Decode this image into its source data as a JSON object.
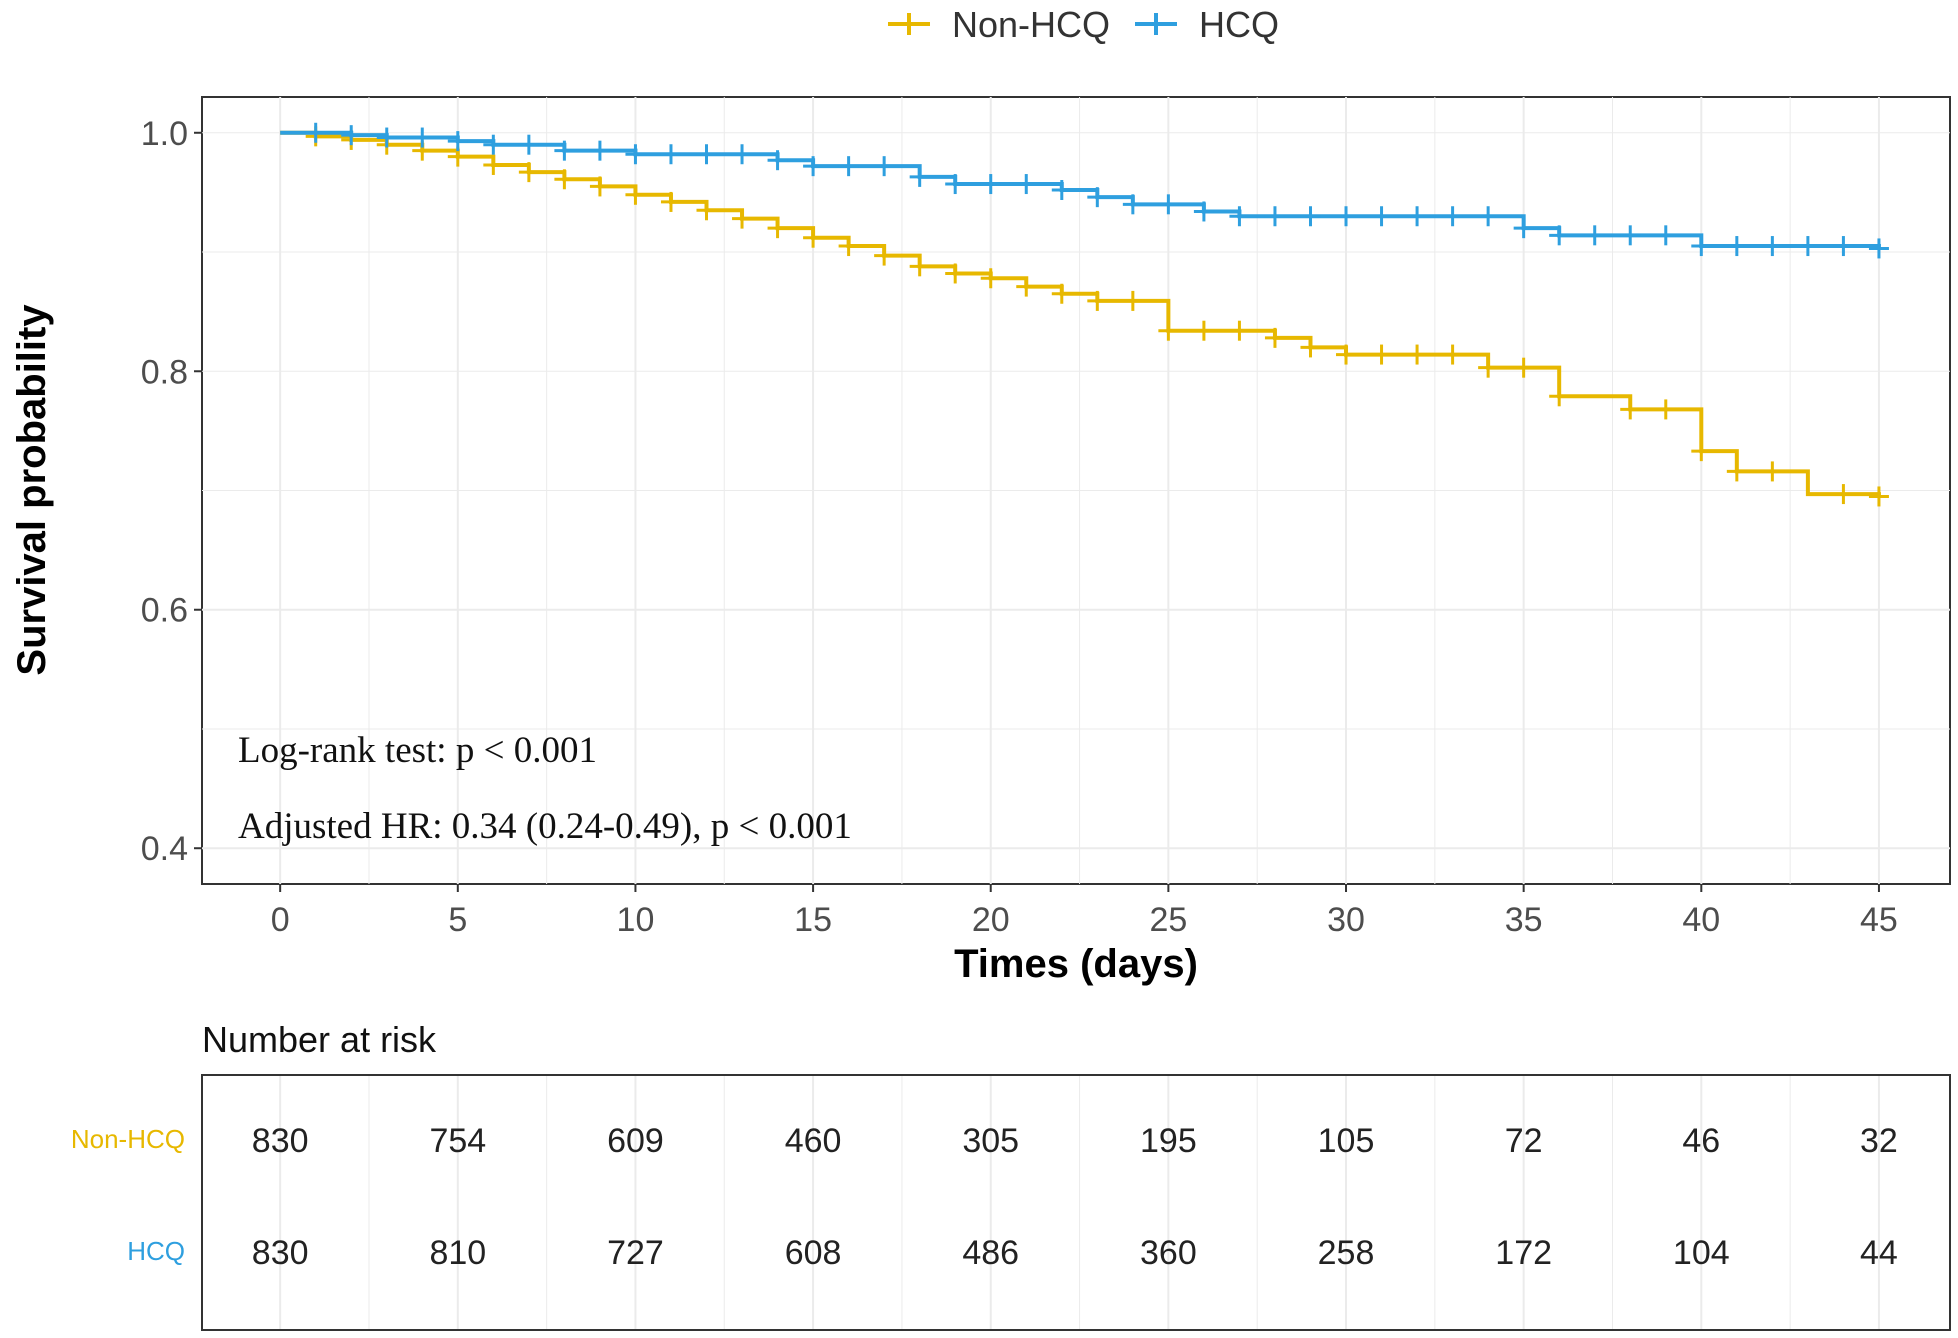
{
  "chart_data": {
    "type": "line",
    "subtype": "kaplan-meier step",
    "ylabel": "Survival probability",
    "xlabel": "Times (days)",
    "xlim": [
      -2.2,
      47
    ],
    "ylim": [
      0.37,
      1.03
    ],
    "x_ticks": [
      0,
      5,
      10,
      15,
      20,
      25,
      30,
      35,
      40,
      45
    ],
    "y_ticks": [
      0.4,
      0.6,
      0.8,
      1.0
    ],
    "y_tick_labels": [
      "0.4",
      "0.6",
      "0.8",
      "1.0"
    ],
    "grid": true,
    "legend_position": "top",
    "series": [
      {
        "name": "Non-HCQ",
        "color": "#E7B800",
        "steps": [
          [
            0,
            1.0
          ],
          [
            1,
            0.997
          ],
          [
            2,
            0.994
          ],
          [
            3,
            0.99
          ],
          [
            4,
            0.985
          ],
          [
            5,
            0.98
          ],
          [
            6,
            0.973
          ],
          [
            7,
            0.967
          ],
          [
            8,
            0.961
          ],
          [
            9,
            0.955
          ],
          [
            10,
            0.948
          ],
          [
            11,
            0.942
          ],
          [
            12,
            0.935
          ],
          [
            13,
            0.928
          ],
          [
            14,
            0.92
          ],
          [
            15,
            0.912
          ],
          [
            16,
            0.905
          ],
          [
            17,
            0.897
          ],
          [
            18,
            0.888
          ],
          [
            19,
            0.882
          ],
          [
            20,
            0.878
          ],
          [
            21,
            0.871
          ],
          [
            22,
            0.865
          ],
          [
            23,
            0.859
          ],
          [
            25,
            0.834
          ],
          [
            28,
            0.828
          ],
          [
            29,
            0.82
          ],
          [
            30,
            0.814
          ],
          [
            34,
            0.803
          ],
          [
            36,
            0.779
          ],
          [
            38,
            0.768
          ],
          [
            40,
            0.733
          ],
          [
            41,
            0.716
          ],
          [
            43,
            0.697
          ],
          [
            45,
            0.695
          ]
        ],
        "censored": [
          1,
          2,
          3,
          4,
          5,
          6,
          7,
          8,
          9,
          10,
          11,
          12,
          13,
          14,
          15,
          16,
          17,
          18,
          19,
          20,
          21,
          22,
          23,
          24,
          25,
          26,
          27,
          28,
          29,
          30,
          31,
          32,
          33,
          34,
          35,
          36,
          38,
          39,
          40,
          41,
          42,
          44,
          45
        ]
      },
      {
        "name": "HCQ",
        "color": "#2E9FDF",
        "steps": [
          [
            0,
            1.0
          ],
          [
            2,
            0.998
          ],
          [
            3,
            0.996
          ],
          [
            5,
            0.993
          ],
          [
            6,
            0.99
          ],
          [
            8,
            0.985
          ],
          [
            10,
            0.982
          ],
          [
            14,
            0.977
          ],
          [
            15,
            0.972
          ],
          [
            18,
            0.963
          ],
          [
            19,
            0.957
          ],
          [
            22,
            0.952
          ],
          [
            23,
            0.946
          ],
          [
            24,
            0.94
          ],
          [
            26,
            0.934
          ],
          [
            27,
            0.93
          ],
          [
            35,
            0.92
          ],
          [
            36,
            0.914
          ],
          [
            40,
            0.905
          ],
          [
            45,
            0.903
          ]
        ],
        "censored": [
          1,
          2,
          3,
          4,
          5,
          6,
          7,
          8,
          9,
          10,
          11,
          12,
          13,
          14,
          15,
          16,
          17,
          18,
          19,
          20,
          21,
          22,
          23,
          24,
          25,
          26,
          27,
          28,
          29,
          30,
          31,
          32,
          33,
          34,
          35,
          36,
          37,
          38,
          39,
          40,
          41,
          42,
          43,
          44,
          45
        ]
      }
    ],
    "annotations": [
      "Log-rank test: p < 0.001",
      "Adjusted HR: 0.34 (0.24-0.49), p < 0.001"
    ],
    "risk_table": {
      "title": "Number at risk",
      "times": [
        0,
        5,
        10,
        15,
        20,
        25,
        30,
        35,
        40,
        45
      ],
      "rows": [
        {
          "name": "Non-HCQ",
          "color": "#E7B800",
          "values": [
            "830",
            "754",
            "609",
            "460",
            "305",
            "195",
            "105",
            "72",
            "46",
            "32"
          ]
        },
        {
          "name": "HCQ",
          "color": "#2E9FDF",
          "values": [
            "830",
            "810",
            "727",
            "608",
            "486",
            "360",
            "258",
            "172",
            "104",
            "44"
          ]
        }
      ]
    }
  }
}
